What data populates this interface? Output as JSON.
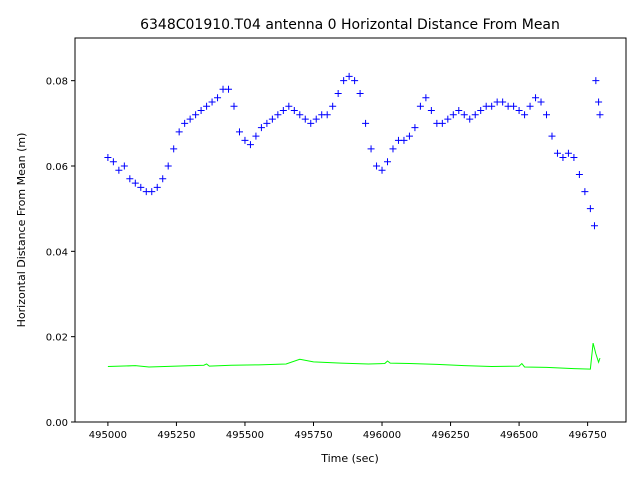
{
  "chart_data": {
    "type": "scatter",
    "title": "6348C01910.T04 antenna 0 Horizontal Distance From Mean",
    "xlabel": "Time (sec)",
    "ylabel": "Horizontal Distance From Mean (m)",
    "xlim": [
      494880,
      496890
    ],
    "ylim": [
      0.0,
      0.09
    ],
    "x_ticks": [
      495000,
      495250,
      495500,
      495750,
      496000,
      496250,
      496500,
      496750
    ],
    "x_tick_labels": [
      "495000",
      "495250",
      "495500",
      "495750",
      "496000",
      "496250",
      "496500",
      "496750"
    ],
    "y_ticks": [
      0.0,
      0.02,
      0.04,
      0.06,
      0.08
    ],
    "y_tick_labels": [
      "0.00",
      "0.02",
      "0.04",
      "0.06",
      "0.08"
    ],
    "grid": false,
    "series": [
      {
        "marker": "+",
        "color": "#0000ff",
        "points": [
          [
            495000,
            0.062
          ],
          [
            495020,
            0.061
          ],
          [
            495040,
            0.059
          ],
          [
            495060,
            0.06
          ],
          [
            495080,
            0.057
          ],
          [
            495100,
            0.056
          ],
          [
            495120,
            0.055
          ],
          [
            495140,
            0.054
          ],
          [
            495160,
            0.054
          ],
          [
            495180,
            0.055
          ],
          [
            495200,
            0.057
          ],
          [
            495220,
            0.06
          ],
          [
            495240,
            0.064
          ],
          [
            495260,
            0.068
          ],
          [
            495280,
            0.07
          ],
          [
            495300,
            0.071
          ],
          [
            495320,
            0.072
          ],
          [
            495340,
            0.073
          ],
          [
            495360,
            0.074
          ],
          [
            495380,
            0.075
          ],
          [
            495400,
            0.076
          ],
          [
            495420,
            0.078
          ],
          [
            495440,
            0.078
          ],
          [
            495460,
            0.074
          ],
          [
            495480,
            0.068
          ],
          [
            495500,
            0.066
          ],
          [
            495520,
            0.065
          ],
          [
            495540,
            0.067
          ],
          [
            495560,
            0.069
          ],
          [
            495580,
            0.07
          ],
          [
            495600,
            0.071
          ],
          [
            495620,
            0.072
          ],
          [
            495640,
            0.073
          ],
          [
            495660,
            0.074
          ],
          [
            495680,
            0.073
          ],
          [
            495700,
            0.072
          ],
          [
            495720,
            0.071
          ],
          [
            495740,
            0.07
          ],
          [
            495760,
            0.071
          ],
          [
            495780,
            0.072
          ],
          [
            495800,
            0.072
          ],
          [
            495820,
            0.074
          ],
          [
            495840,
            0.077
          ],
          [
            495860,
            0.08
          ],
          [
            495880,
            0.081
          ],
          [
            495900,
            0.08
          ],
          [
            495920,
            0.077
          ],
          [
            495940,
            0.07
          ],
          [
            495960,
            0.064
          ],
          [
            495980,
            0.06
          ],
          [
            496000,
            0.059
          ],
          [
            496020,
            0.061
          ],
          [
            496040,
            0.064
          ],
          [
            496060,
            0.066
          ],
          [
            496080,
            0.066
          ],
          [
            496100,
            0.067
          ],
          [
            496120,
            0.069
          ],
          [
            496140,
            0.074
          ],
          [
            496160,
            0.076
          ],
          [
            496180,
            0.073
          ],
          [
            496200,
            0.07
          ],
          [
            496220,
            0.07
          ],
          [
            496240,
            0.071
          ],
          [
            496260,
            0.072
          ],
          [
            496280,
            0.073
          ],
          [
            496300,
            0.072
          ],
          [
            496320,
            0.071
          ],
          [
            496340,
            0.072
          ],
          [
            496360,
            0.073
          ],
          [
            496380,
            0.074
          ],
          [
            496400,
            0.074
          ],
          [
            496420,
            0.075
          ],
          [
            496440,
            0.075
          ],
          [
            496460,
            0.074
          ],
          [
            496480,
            0.074
          ],
          [
            496500,
            0.073
          ],
          [
            496520,
            0.072
          ],
          [
            496540,
            0.074
          ],
          [
            496560,
            0.076
          ],
          [
            496580,
            0.075
          ],
          [
            496600,
            0.072
          ],
          [
            496620,
            0.067
          ],
          [
            496640,
            0.063
          ],
          [
            496660,
            0.062
          ],
          [
            496680,
            0.063
          ],
          [
            496700,
            0.062
          ],
          [
            496720,
            0.058
          ],
          [
            496740,
            0.054
          ],
          [
            496760,
            0.05
          ],
          [
            496775,
            0.046
          ],
          [
            496780,
            0.08
          ],
          [
            496790,
            0.075
          ],
          [
            496795,
            0.072
          ]
        ]
      },
      {
        "line": true,
        "color": "#00ff00",
        "points": [
          [
            495000,
            0.013
          ],
          [
            495100,
            0.0132
          ],
          [
            495150,
            0.0129
          ],
          [
            495250,
            0.0131
          ],
          [
            495350,
            0.0133
          ],
          [
            495360,
            0.0136
          ],
          [
            495370,
            0.0131
          ],
          [
            495450,
            0.0133
          ],
          [
            495550,
            0.0134
          ],
          [
            495650,
            0.0136
          ],
          [
            495700,
            0.0147
          ],
          [
            495750,
            0.0141
          ],
          [
            495850,
            0.0138
          ],
          [
            495950,
            0.0136
          ],
          [
            496010,
            0.0137
          ],
          [
            496020,
            0.0143
          ],
          [
            496030,
            0.0138
          ],
          [
            496100,
            0.0137
          ],
          [
            496200,
            0.0135
          ],
          [
            496300,
            0.0132
          ],
          [
            496400,
            0.013
          ],
          [
            496500,
            0.0131
          ],
          [
            496510,
            0.0137
          ],
          [
            496520,
            0.0129
          ],
          [
            496600,
            0.0128
          ],
          [
            496700,
            0.0125
          ],
          [
            496760,
            0.0124
          ],
          [
            496770,
            0.0185
          ],
          [
            496780,
            0.016
          ],
          [
            496790,
            0.014
          ],
          [
            496795,
            0.015
          ]
        ]
      }
    ]
  }
}
